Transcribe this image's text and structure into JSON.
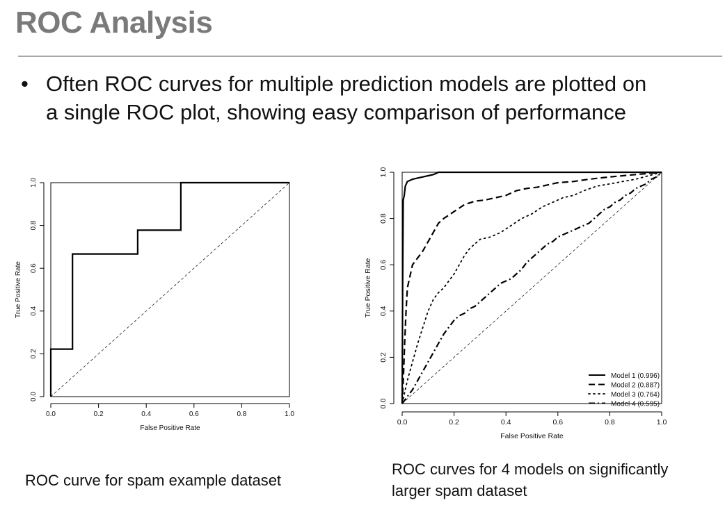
{
  "slide": {
    "title": "ROC Analysis",
    "bullet_symbol": "•",
    "bullet_lines": [
      "Often ROC curves for multiple prediction models are plotted on",
      "a single ROC plot, showing easy comparison of performance"
    ],
    "caption_left": "ROC curve for spam example dataset",
    "caption_right_lines": [
      "ROC curves for 4 models on significantly",
      "larger spam dataset"
    ]
  },
  "chart_data": [
    {
      "type": "line",
      "xlabel": "False Positive Rate",
      "ylabel": "True Positive Rate",
      "xlim": [
        0,
        1
      ],
      "ylim": [
        0,
        1
      ],
      "xticks": [
        "0.0",
        "0.2",
        "0.4",
        "0.6",
        "0.8",
        "1.0"
      ],
      "yticks": [
        "0.0",
        "0.2",
        "0.4",
        "0.6",
        "0.8",
        "1.0"
      ],
      "grid": false,
      "series": [
        {
          "style": "solid",
          "x": [
            0,
            0,
            0.091,
            0.091,
            0.364,
            0.364,
            0.545,
            0.545,
            1.0
          ],
          "y": [
            0,
            0.222,
            0.222,
            0.667,
            0.667,
            0.778,
            0.778,
            1.0,
            1.0
          ]
        },
        {
          "style": "diagonal-dashed",
          "x": [
            0,
            1
          ],
          "y": [
            0,
            1
          ]
        }
      ]
    },
    {
      "type": "line",
      "xlabel": "False Positive Rate",
      "ylabel": "True Positive Rate",
      "xlim": [
        0,
        1
      ],
      "ylim": [
        0,
        1
      ],
      "xticks": [
        "0.0",
        "0.2",
        "0.4",
        "0.6",
        "0.8",
        "1.0"
      ],
      "yticks": [
        "0.0",
        "0.2",
        "0.4",
        "0.6",
        "0.8",
        "1.0"
      ],
      "grid": false,
      "legend_position": "bottom-right",
      "series": [
        {
          "name": "Model 1 (0.996)",
          "style": "solid",
          "x": [
            0,
            0.002,
            0.004,
            0.008,
            0.012,
            0.016,
            0.02,
            0.03,
            0.04,
            0.06,
            0.08,
            0.1,
            0.12,
            0.13,
            0.14,
            0.2,
            0.3,
            0.5,
            1.0
          ],
          "y": [
            0,
            0.5,
            0.88,
            0.9,
            0.94,
            0.95,
            0.96,
            0.965,
            0.97,
            0.975,
            0.98,
            0.985,
            0.99,
            0.995,
            1.0,
            1.0,
            1.0,
            1.0,
            1.0
          ]
        },
        {
          "name": "Model 2 (0.887)",
          "style": "dashed",
          "x": [
            0,
            0.005,
            0.01,
            0.015,
            0.02,
            0.03,
            0.04,
            0.06,
            0.08,
            0.1,
            0.12,
            0.14,
            0.16,
            0.2,
            0.24,
            0.28,
            0.32,
            0.36,
            0.4,
            0.44,
            0.48,
            0.52,
            0.56,
            0.6,
            0.66,
            0.72,
            0.8,
            0.9,
            1.0
          ],
          "y": [
            0,
            0.12,
            0.27,
            0.4,
            0.5,
            0.55,
            0.6,
            0.63,
            0.66,
            0.7,
            0.74,
            0.78,
            0.8,
            0.83,
            0.86,
            0.875,
            0.88,
            0.89,
            0.9,
            0.92,
            0.93,
            0.935,
            0.945,
            0.955,
            0.96,
            0.97,
            0.98,
            0.99,
            1.0
          ]
        },
        {
          "name": "Model 3 (0.764)",
          "style": "dotted",
          "x": [
            0,
            0.02,
            0.04,
            0.06,
            0.08,
            0.1,
            0.12,
            0.14,
            0.16,
            0.18,
            0.2,
            0.22,
            0.24,
            0.26,
            0.28,
            0.3,
            0.34,
            0.38,
            0.42,
            0.46,
            0.5,
            0.54,
            0.58,
            0.62,
            0.66,
            0.7,
            0.75,
            0.8,
            0.85,
            0.9,
            0.95,
            1.0
          ],
          "y": [
            0,
            0.1,
            0.18,
            0.26,
            0.33,
            0.4,
            0.45,
            0.48,
            0.5,
            0.53,
            0.56,
            0.6,
            0.64,
            0.67,
            0.69,
            0.71,
            0.72,
            0.74,
            0.77,
            0.8,
            0.82,
            0.85,
            0.87,
            0.89,
            0.9,
            0.92,
            0.94,
            0.95,
            0.96,
            0.97,
            0.985,
            1.0
          ]
        },
        {
          "name": "Model 4 (0.595)",
          "style": "dashdot",
          "x": [
            0,
            0.02,
            0.04,
            0.06,
            0.08,
            0.1,
            0.12,
            0.14,
            0.16,
            0.18,
            0.2,
            0.22,
            0.24,
            0.26,
            0.28,
            0.3,
            0.32,
            0.34,
            0.36,
            0.38,
            0.4,
            0.42,
            0.44,
            0.46,
            0.48,
            0.5,
            0.52,
            0.54,
            0.56,
            0.58,
            0.6,
            0.62,
            0.64,
            0.66,
            0.68,
            0.7,
            0.72,
            0.74,
            0.76,
            0.78,
            0.8,
            0.82,
            0.84,
            0.86,
            0.88,
            0.9,
            0.92,
            0.94,
            0.96,
            0.98,
            1.0
          ],
          "y": [
            0,
            0.03,
            0.06,
            0.1,
            0.14,
            0.18,
            0.22,
            0.26,
            0.3,
            0.33,
            0.36,
            0.38,
            0.39,
            0.41,
            0.42,
            0.44,
            0.46,
            0.48,
            0.5,
            0.52,
            0.53,
            0.54,
            0.56,
            0.58,
            0.61,
            0.63,
            0.65,
            0.67,
            0.69,
            0.7,
            0.72,
            0.73,
            0.74,
            0.75,
            0.76,
            0.77,
            0.78,
            0.8,
            0.82,
            0.84,
            0.85,
            0.87,
            0.88,
            0.9,
            0.91,
            0.93,
            0.94,
            0.95,
            0.97,
            0.98,
            1.0
          ]
        },
        {
          "style": "diagonal-dashed",
          "x": [
            0,
            1
          ],
          "y": [
            0,
            1
          ]
        }
      ]
    }
  ]
}
